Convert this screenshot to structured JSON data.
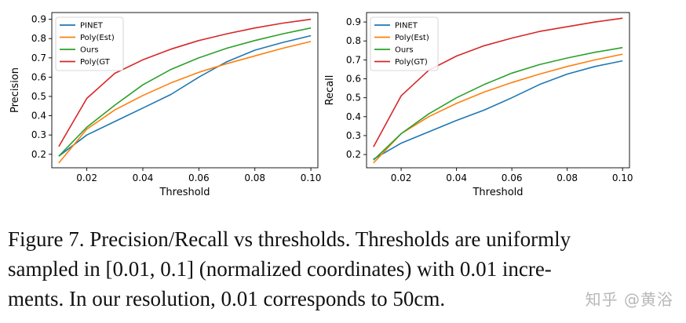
{
  "chart_data": [
    {
      "type": "line",
      "title": "",
      "xlabel": "Threshold",
      "ylabel": "Precision",
      "xlim": [
        0.0075,
        0.1025
      ],
      "ylim": [
        0.13,
        0.935
      ],
      "xticks": [
        "0.02",
        "0.04",
        "0.06",
        "0.08",
        "0.10"
      ],
      "yticks": [
        "0.2",
        "0.3",
        "0.4",
        "0.5",
        "0.6",
        "0.7",
        "0.8",
        "0.9"
      ],
      "legend_position": "top-left",
      "x": [
        0.01,
        0.02,
        0.03,
        0.04,
        0.05,
        0.06,
        0.07,
        0.08,
        0.09,
        0.1
      ],
      "series": [
        {
          "name": "PINET",
          "color": "#1f77b4",
          "values": [
            0.19,
            0.3,
            0.37,
            0.44,
            0.51,
            0.6,
            0.68,
            0.74,
            0.78,
            0.815
          ]
        },
        {
          "name": "Poly(Est)",
          "color": "#ff7f0e",
          "values": [
            0.155,
            0.33,
            0.43,
            0.505,
            0.57,
            0.625,
            0.67,
            0.71,
            0.75,
            0.785
          ]
        },
        {
          "name": "Ours",
          "color": "#2ca02c",
          "values": [
            0.19,
            0.34,
            0.455,
            0.56,
            0.64,
            0.7,
            0.75,
            0.79,
            0.825,
            0.855
          ]
        },
        {
          "name": "Poly(GT",
          "color": "#d62728",
          "values": [
            0.24,
            0.49,
            0.62,
            0.69,
            0.745,
            0.79,
            0.825,
            0.855,
            0.88,
            0.9
          ]
        }
      ]
    },
    {
      "type": "line",
      "title": "",
      "xlabel": "Threshold",
      "ylabel": "Recall",
      "xlim": [
        0.0075,
        0.1025
      ],
      "ylim": [
        0.13,
        0.95
      ],
      "xticks": [
        "0.02",
        "0.04",
        "0.06",
        "0.08",
        "0.10"
      ],
      "yticks": [
        "0.2",
        "0.3",
        "0.4",
        "0.5",
        "0.6",
        "0.7",
        "0.8",
        "0.9"
      ],
      "legend_position": "top-left",
      "x": [
        0.01,
        0.02,
        0.03,
        0.04,
        0.05,
        0.06,
        0.07,
        0.08,
        0.09,
        0.1
      ],
      "series": [
        {
          "name": "PINET",
          "color": "#1f77b4",
          "values": [
            0.175,
            0.26,
            0.32,
            0.38,
            0.435,
            0.5,
            0.57,
            0.625,
            0.665,
            0.695
          ]
        },
        {
          "name": "Poly(Est)",
          "color": "#ff7f0e",
          "values": [
            0.155,
            0.31,
            0.4,
            0.47,
            0.53,
            0.58,
            0.625,
            0.665,
            0.7,
            0.73
          ]
        },
        {
          "name": "Ours",
          "color": "#2ca02c",
          "values": [
            0.17,
            0.31,
            0.415,
            0.5,
            0.57,
            0.63,
            0.675,
            0.71,
            0.74,
            0.765
          ]
        },
        {
          "name": "Poly(GT)",
          "color": "#d62728",
          "values": [
            0.24,
            0.51,
            0.645,
            0.72,
            0.775,
            0.815,
            0.85,
            0.875,
            0.9,
            0.92
          ]
        }
      ]
    }
  ],
  "caption": {
    "line1": "Figure 7. Precision/Recall vs thresholds. Thresholds are uniformly",
    "line2": "sampled in [0.01, 0.1] (normalized coordinates) with 0.01 incre-",
    "line3": "ments. In our resolution, 0.01 corresponds to 50cm."
  },
  "watermark": "知乎 @黄浴"
}
